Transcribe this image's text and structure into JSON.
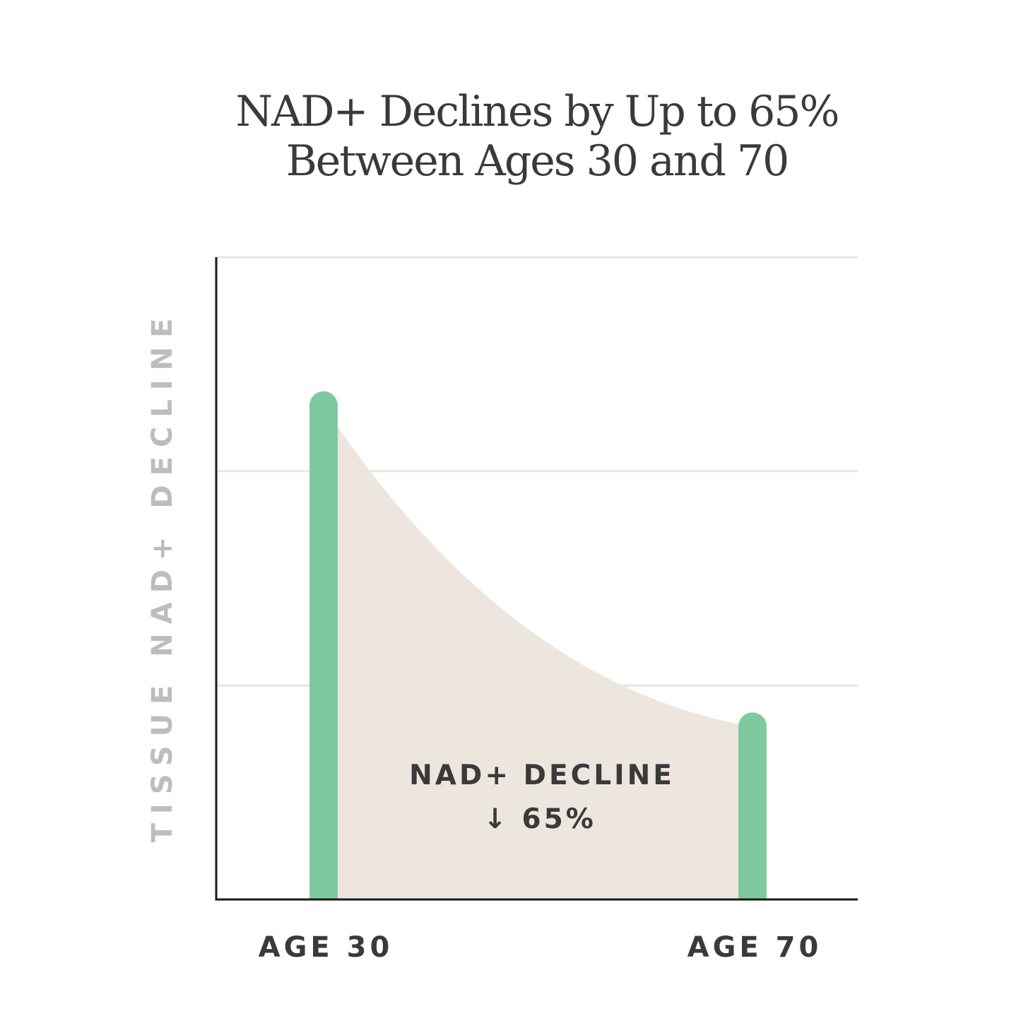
{
  "colors": {
    "background": "#ffffff",
    "bar": "#7fc99e",
    "area": "#ede6df",
    "grid": "#e6e6e6",
    "axis": "#1a1a1a",
    "title": "#3a3a3a",
    "ylabel": "#bdbdbd",
    "tick_label": "#3a3a3a",
    "annotation": "#3a3a3a"
  },
  "chart_data": {
    "type": "area",
    "title_lines": [
      "NAD+ Declines by Up to 65%",
      "Between Ages 30 and 70"
    ],
    "ylabel": "TISSUE NAD+ DECLINE",
    "categories": [
      "AGE 30",
      "AGE 70"
    ],
    "values": [
      100,
      35
    ],
    "ylim": [
      0,
      130
    ],
    "grid": true,
    "gridlines_y": [
      43.3,
      86.7,
      130
    ],
    "annotation": {
      "line1": "NAD+ DECLINE",
      "line2": "↓ 65%"
    }
  }
}
